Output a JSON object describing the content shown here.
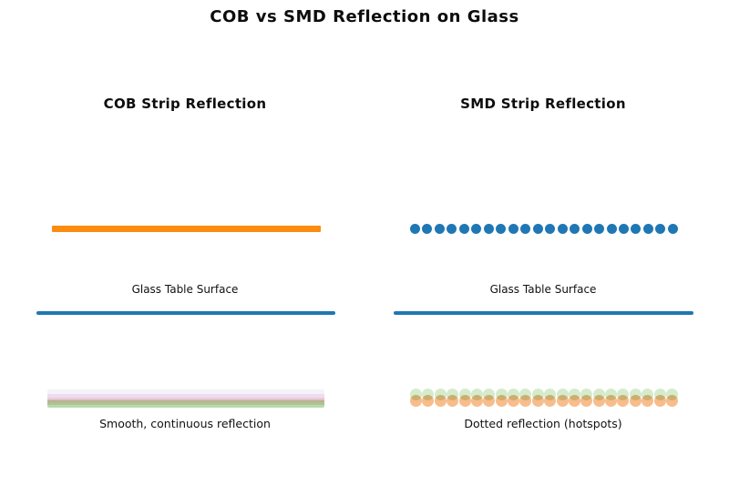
{
  "figure": {
    "title": "COB vs SMD Reflection on Glass"
  },
  "colors": {
    "cob_strip_orange": "#FB8C0D",
    "smd_led_blue": "#1F77B4",
    "glass_line_blue": "#1F77B4",
    "reflection_orange": "#F7BD8C",
    "reflection_green": "#D5EBCC"
  },
  "left_panel": {
    "title": "COB Strip Reflection",
    "strip_type": "continuous",
    "surface_label": "Glass Table Surface",
    "caption": "Smooth, continuous reflection"
  },
  "right_panel": {
    "title": "SMD Strip Reflection",
    "strip_type": "dotted",
    "led_count": 22,
    "reflection_dot_count": 22,
    "surface_label": "Glass Table Surface",
    "caption": "Dotted reflection (hotspots)"
  }
}
